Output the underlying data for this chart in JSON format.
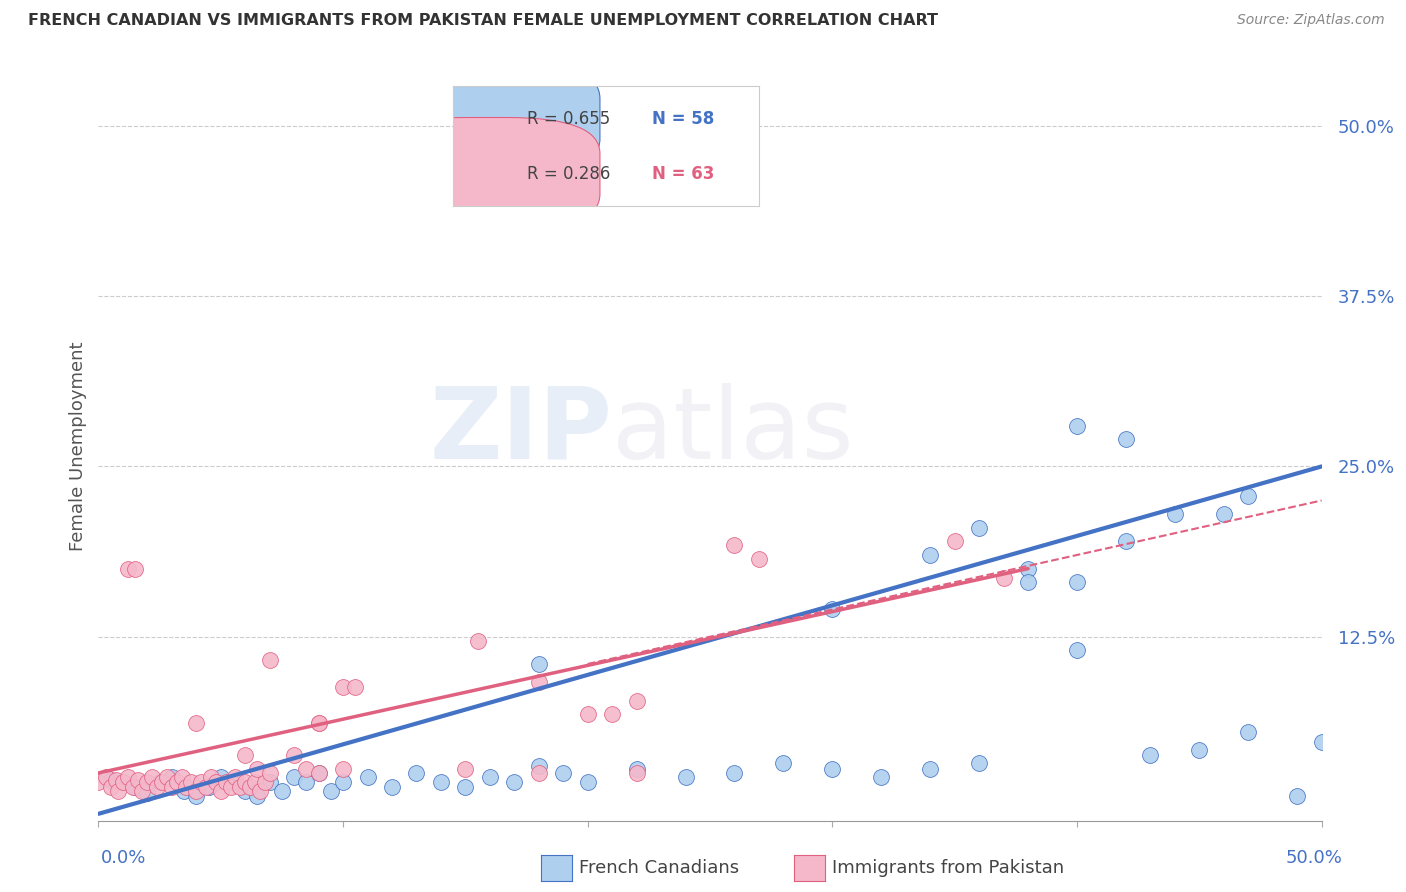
{
  "title": "FRENCH CANADIAN VS IMMIGRANTS FROM PAKISTAN FEMALE UNEMPLOYMENT CORRELATION CHART",
  "source": "Source: ZipAtlas.com",
  "ylabel": "Female Unemployment",
  "ytick_labels": [
    "12.5%",
    "25.0%",
    "37.5%",
    "50.0%"
  ],
  "ytick_values": [
    0.125,
    0.25,
    0.375,
    0.5
  ],
  "xlim": [
    0.0,
    0.5
  ],
  "ylim": [
    -0.01,
    0.54
  ],
  "color_blue": "#aecfee",
  "color_pink": "#f5b8cb",
  "line_blue": "#4472c4",
  "line_pink": "#e06080",
  "watermark_zip": "ZIP",
  "watermark_atlas": "atlas",
  "blue_scatter": [
    [
      0.005,
      0.02
    ],
    [
      0.01,
      0.018
    ],
    [
      0.015,
      0.015
    ],
    [
      0.02,
      0.01
    ],
    [
      0.025,
      0.018
    ],
    [
      0.03,
      0.022
    ],
    [
      0.035,
      0.012
    ],
    [
      0.04,
      0.008
    ],
    [
      0.045,
      0.015
    ],
    [
      0.05,
      0.022
    ],
    [
      0.055,
      0.018
    ],
    [
      0.06,
      0.012
    ],
    [
      0.065,
      0.008
    ],
    [
      0.07,
      0.018
    ],
    [
      0.075,
      0.012
    ],
    [
      0.08,
      0.022
    ],
    [
      0.085,
      0.018
    ],
    [
      0.09,
      0.025
    ],
    [
      0.095,
      0.012
    ],
    [
      0.1,
      0.018
    ],
    [
      0.11,
      0.022
    ],
    [
      0.12,
      0.015
    ],
    [
      0.13,
      0.025
    ],
    [
      0.14,
      0.018
    ],
    [
      0.15,
      0.015
    ],
    [
      0.16,
      0.022
    ],
    [
      0.17,
      0.018
    ],
    [
      0.18,
      0.03
    ],
    [
      0.19,
      0.025
    ],
    [
      0.2,
      0.018
    ],
    [
      0.22,
      0.028
    ],
    [
      0.24,
      0.022
    ],
    [
      0.26,
      0.025
    ],
    [
      0.28,
      0.032
    ],
    [
      0.3,
      0.028
    ],
    [
      0.32,
      0.022
    ],
    [
      0.34,
      0.028
    ],
    [
      0.36,
      0.032
    ],
    [
      0.18,
      0.105
    ],
    [
      0.3,
      0.145
    ],
    [
      0.34,
      0.185
    ],
    [
      0.36,
      0.205
    ],
    [
      0.38,
      0.175
    ],
    [
      0.4,
      0.165
    ],
    [
      0.42,
      0.195
    ],
    [
      0.44,
      0.215
    ],
    [
      0.46,
      0.215
    ],
    [
      0.47,
      0.228
    ],
    [
      0.4,
      0.28
    ],
    [
      0.42,
      0.27
    ],
    [
      0.38,
      0.165
    ],
    [
      0.4,
      0.115
    ],
    [
      0.43,
      0.038
    ],
    [
      0.45,
      0.042
    ],
    [
      0.47,
      0.055
    ],
    [
      0.49,
      0.008
    ],
    [
      0.5,
      0.048
    ]
  ],
  "pink_scatter": [
    [
      0.0,
      0.018
    ],
    [
      0.003,
      0.022
    ],
    [
      0.005,
      0.015
    ],
    [
      0.007,
      0.02
    ],
    [
      0.008,
      0.012
    ],
    [
      0.01,
      0.018
    ],
    [
      0.012,
      0.022
    ],
    [
      0.014,
      0.015
    ],
    [
      0.016,
      0.02
    ],
    [
      0.018,
      0.012
    ],
    [
      0.02,
      0.018
    ],
    [
      0.022,
      0.022
    ],
    [
      0.024,
      0.015
    ],
    [
      0.026,
      0.018
    ],
    [
      0.028,
      0.022
    ],
    [
      0.03,
      0.015
    ],
    [
      0.032,
      0.018
    ],
    [
      0.034,
      0.022
    ],
    [
      0.036,
      0.015
    ],
    [
      0.038,
      0.018
    ],
    [
      0.04,
      0.012
    ],
    [
      0.042,
      0.018
    ],
    [
      0.044,
      0.015
    ],
    [
      0.046,
      0.022
    ],
    [
      0.048,
      0.018
    ],
    [
      0.05,
      0.012
    ],
    [
      0.052,
      0.018
    ],
    [
      0.054,
      0.015
    ],
    [
      0.056,
      0.022
    ],
    [
      0.058,
      0.015
    ],
    [
      0.06,
      0.018
    ],
    [
      0.062,
      0.015
    ],
    [
      0.064,
      0.018
    ],
    [
      0.066,
      0.012
    ],
    [
      0.068,
      0.018
    ],
    [
      0.012,
      0.175
    ],
    [
      0.015,
      0.175
    ],
    [
      0.07,
      0.108
    ],
    [
      0.09,
      0.062
    ],
    [
      0.1,
      0.088
    ],
    [
      0.105,
      0.088
    ],
    [
      0.155,
      0.122
    ],
    [
      0.18,
      0.092
    ],
    [
      0.2,
      0.068
    ],
    [
      0.21,
      0.068
    ],
    [
      0.22,
      0.078
    ],
    [
      0.26,
      0.192
    ],
    [
      0.27,
      0.182
    ],
    [
      0.35,
      0.195
    ],
    [
      0.37,
      0.168
    ],
    [
      0.04,
      0.062
    ],
    [
      0.065,
      0.028
    ],
    [
      0.085,
      0.028
    ],
    [
      0.09,
      0.062
    ],
    [
      0.1,
      0.028
    ],
    [
      0.15,
      0.028
    ],
    [
      0.18,
      0.025
    ],
    [
      0.22,
      0.025
    ],
    [
      0.06,
      0.038
    ],
    [
      0.07,
      0.025
    ],
    [
      0.08,
      0.038
    ],
    [
      0.09,
      0.025
    ]
  ],
  "blue_line": {
    "x0": 0.0,
    "y0": -0.005,
    "x1": 0.5,
    "y1": 0.25
  },
  "pink_line_solid": {
    "x0": 0.0,
    "y0": 0.025,
    "x1": 0.38,
    "y1": 0.175
  },
  "pink_line_dashed": {
    "x0": 0.2,
    "y0": 0.105,
    "x1": 0.5,
    "y1": 0.225
  }
}
